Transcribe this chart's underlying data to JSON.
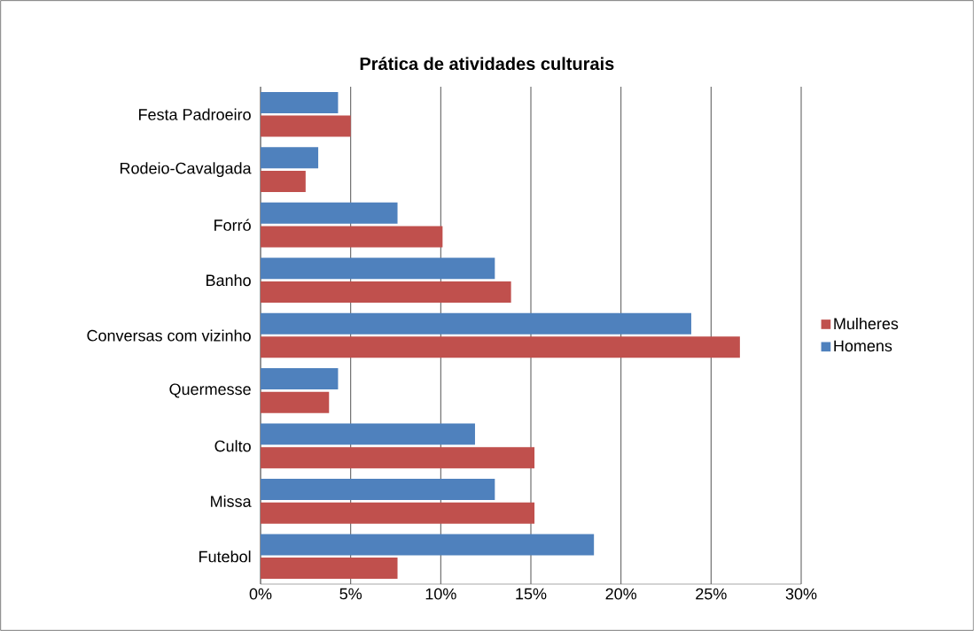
{
  "chart_data": {
    "type": "bar",
    "orientation": "horizontal",
    "title": "Prática de atividades culturais",
    "categories": [
      "Festa Padroeiro",
      "Rodeio-Cavalgada",
      "Forró",
      "Banho",
      "Conversas com vizinho",
      "Quermesse",
      "Culto",
      "Missa",
      "Futebol"
    ],
    "series": [
      {
        "name": "Mulheres",
        "color": "#c0504d",
        "values": [
          5.0,
          2.5,
          10.1,
          13.9,
          26.6,
          3.8,
          15.2,
          15.2,
          7.6
        ]
      },
      {
        "name": "Homens",
        "color": "#4f81bd",
        "values": [
          4.3,
          3.2,
          7.6,
          13.0,
          23.9,
          4.3,
          11.9,
          13.0,
          18.5
        ]
      }
    ],
    "xlim": [
      0,
      30
    ],
    "xticks": [
      {
        "value": 0,
        "label": "0%"
      },
      {
        "value": 5,
        "label": "5%"
      },
      {
        "value": 10,
        "label": "10%"
      },
      {
        "value": 15,
        "label": "15%"
      },
      {
        "value": 20,
        "label": "20%"
      },
      {
        "value": 25,
        "label": "25%"
      },
      {
        "value": 30,
        "label": "30%"
      }
    ],
    "grid": "x",
    "legend": "right"
  }
}
